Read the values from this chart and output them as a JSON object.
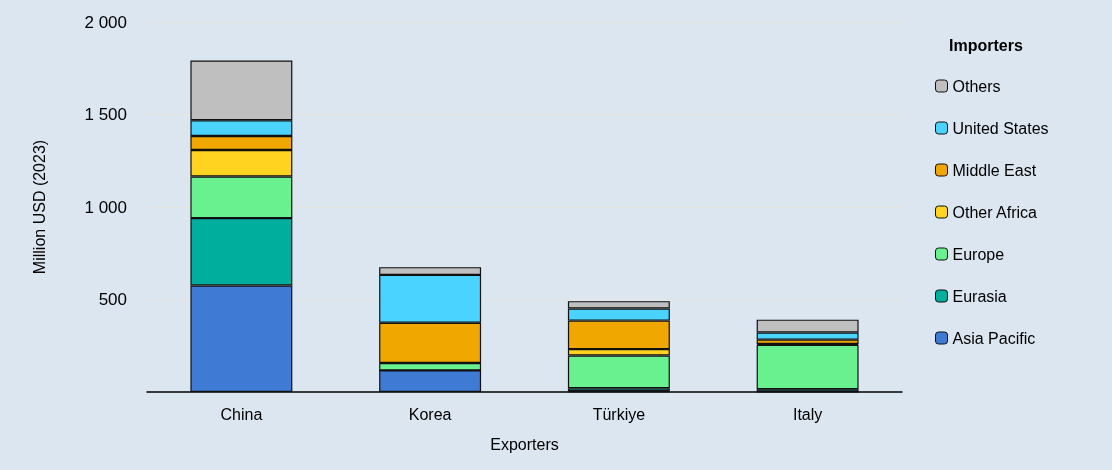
{
  "chart_data": {
    "type": "bar",
    "stacked": true,
    "xlabel": "Exporters",
    "ylabel": "Million USD (2023)",
    "legend_title": "Importers",
    "legend": "right",
    "grid": "y",
    "categories": [
      "China",
      "Korea",
      "Türkiye",
      "Italy"
    ],
    "ylim": [
      0,
      2000
    ],
    "yticks": [
      500,
      {
        "value": 1000,
        "label": "1 000"
      },
      {
        "value": 1500,
        "label": "1 500"
      },
      {
        "value": 2000,
        "label": "2 000"
      }
    ],
    "series": [
      {
        "name": "Asia Pacific",
        "color": "#3f7bd4",
        "values": [
          576,
          117,
          5,
          0
        ]
      },
      {
        "name": "Eurasia",
        "color": "#00ae9e",
        "values": [
          364,
          0,
          15,
          15
        ]
      },
      {
        "name": "Europe",
        "color": "#69f08f",
        "values": [
          225,
          40,
          177,
          240
        ]
      },
      {
        "name": "Other Africa",
        "color": "#ffd320",
        "values": [
          143,
          null,
          35,
          5
        ]
      },
      {
        "name": "Middle East",
        "color": "#f0a800",
        "values": [
          76,
          217,
          154,
          23
        ]
      },
      {
        "name": "United States",
        "color": "#4bd3ff",
        "values": [
          85,
          259,
          65,
          39
        ]
      },
      {
        "name": "Others",
        "color": "#bfbfbf",
        "values": [
          323,
          42,
          40,
          69
        ]
      }
    ]
  }
}
